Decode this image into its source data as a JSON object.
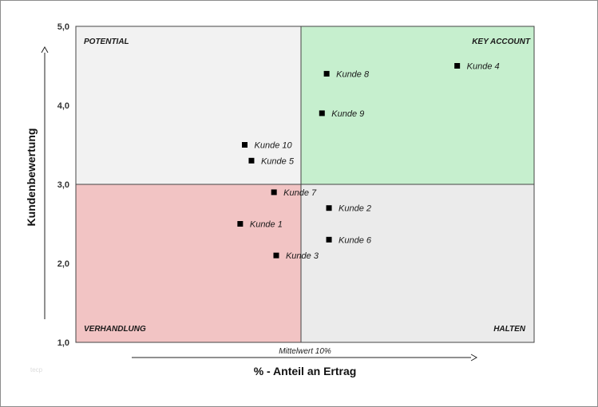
{
  "chart_data": {
    "type": "scatter",
    "title": "",
    "xlabel": "% - Anteil an Ertrag",
    "ylabel": "Kundenbewertung",
    "ylim": [
      1.0,
      5.0
    ],
    "y_ticks": [
      "1,0",
      "2,0",
      "3,0",
      "4,0",
      "5,0"
    ],
    "x_divider_label": "Mittelwert 10%",
    "quadrants": {
      "top_left": "POTENTIAL",
      "top_right": "KEY ACCOUNT",
      "bottom_left": "VERHANDLUNG",
      "bottom_right": "HALTEN"
    },
    "points": [
      {
        "label": "Kunde 1",
        "x": 7.3,
        "y": 2.5
      },
      {
        "label": "Kunde 2",
        "x": 11.2,
        "y": 2.7
      },
      {
        "label": "Kunde 3",
        "x": 8.9,
        "y": 2.1
      },
      {
        "label": "Kunde 4",
        "x": 16.7,
        "y": 4.5
      },
      {
        "label": "Kunde 5",
        "x": 7.8,
        "y": 3.3
      },
      {
        "label": "Kunde 6",
        "x": 11.2,
        "y": 2.3
      },
      {
        "label": "Kunde 7",
        "x": 8.8,
        "y": 2.9
      },
      {
        "label": "Kunde 8",
        "x": 11.1,
        "y": 4.4
      },
      {
        "label": "Kunde 9",
        "x": 10.9,
        "y": 3.9
      },
      {
        "label": "Kunde 10",
        "x": 7.5,
        "y": 3.5
      }
    ],
    "colors": {
      "top_left": "#f2f2f2",
      "top_right": "#c6efce",
      "bottom_left": "#f2c4c4",
      "bottom_right": "#ebebeb"
    }
  },
  "watermark": "tecp"
}
